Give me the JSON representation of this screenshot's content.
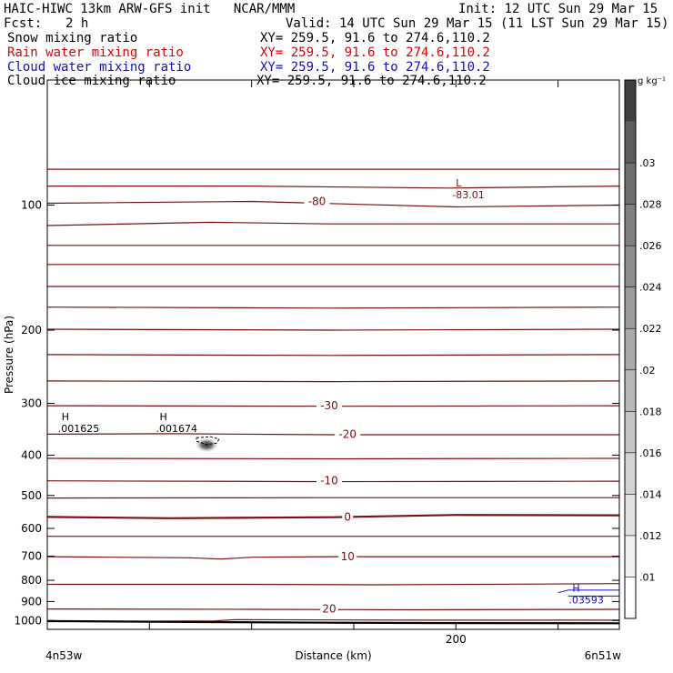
{
  "header": {
    "title": "HAIC-HIWC 13km ARW-GFS init   NCAR/MMM",
    "init": "Init: 12 UTC Sun 29 Mar 15",
    "fcst_label": "Fcst:",
    "fcst_value": "2 h",
    "valid": "Valid: 14 UTC Sun 29 Mar 15 (11 LST Sun 29 Mar 15)",
    "fields": [
      {
        "name": "Snow mixing ratio",
        "xy": "XY= 259.5, 91.6 to 274.6,110.2",
        "color": "#000000"
      },
      {
        "name": "Rain water mixing ratio",
        "xy": "XY= 259.5, 91.6 to 274.6,110.2",
        "color": "#e00000"
      },
      {
        "name": "Cloud water mixing ratio",
        "xy": "XY= 259.5, 91.6 to 274.6,110.2",
        "color": "#1010c0"
      },
      {
        "name": "Cloud ice mixing ratio",
        "xy": "XY= 259.5, 91.6 to 274.6,110.2",
        "color": "#000000"
      }
    ]
  },
  "chart_data": {
    "type": "contour",
    "xlabel": "Distance (km)",
    "ylabel": "Pressure (hPa)",
    "x_range": [
      0,
      280
    ],
    "y_range": [
      1050,
      50
    ],
    "y_scale": "log",
    "x_ticks": [
      0,
      50,
      100,
      150,
      200,
      250
    ],
    "x_tick_labels": [
      "",
      "",
      "",
      "",
      "200",
      ""
    ],
    "y_ticks": [
      100,
      200,
      300,
      400,
      500,
      600,
      700,
      800,
      900,
      1000
    ],
    "y_tick_labels": [
      "100",
      "200",
      "300",
      "400",
      "500",
      "600",
      "700",
      "800",
      "900",
      "1000"
    ],
    "left_endpoint_label": "4n53w",
    "right_endpoint_label": "6n51w",
    "temperature_color": "#7a1010",
    "temperature_contours": [
      {
        "label": "-80",
        "pts": [
          [
            0,
            82
          ],
          [
            140,
            82
          ],
          [
            280,
            82
          ]
        ]
      },
      {
        "label": "-80",
        "pts": [
          [
            0,
            90
          ],
          [
            100,
            90
          ],
          [
            196,
            91
          ],
          [
            280,
            90
          ]
        ]
      },
      {
        "label": "-80",
        "pts": [
          [
            0,
            99
          ],
          [
            100,
            98
          ],
          [
            200,
            101
          ],
          [
            280,
            100
          ]
        ]
      },
      {
        "label": "-80",
        "pts": [
          [
            0,
            112
          ],
          [
            80,
            110
          ],
          [
            138,
            111
          ],
          [
            200,
            111
          ],
          [
            280,
            111
          ]
        ]
      },
      {
        "label": "-80",
        "pts": [
          [
            0,
            125
          ],
          [
            140,
            125
          ],
          [
            280,
            125
          ]
        ]
      },
      {
        "label": "-80",
        "pts": [
          [
            0,
            139
          ],
          [
            140,
            139
          ],
          [
            280,
            139
          ]
        ]
      },
      {
        "label": "-80",
        "pts": [
          [
            0,
            157
          ],
          [
            140,
            157
          ],
          [
            280,
            157
          ]
        ]
      },
      {
        "label": "-80",
        "pts": [
          [
            0,
            176
          ],
          [
            140,
            177
          ],
          [
            280,
            176
          ]
        ]
      },
      {
        "label": "-80",
        "pts": [
          [
            0,
            199
          ],
          [
            140,
            200
          ],
          [
            280,
            199
          ]
        ]
      },
      {
        "label": "-80",
        "pts": [
          [
            0,
            229
          ],
          [
            140,
            230
          ],
          [
            280,
            229
          ]
        ]
      },
      {
        "label": "-80",
        "pts": [
          [
            0,
            265
          ],
          [
            140,
            266
          ],
          [
            280,
            265
          ]
        ]
      },
      {
        "label": "-30",
        "pts": [
          [
            0,
            304
          ],
          [
            140,
            305
          ],
          [
            280,
            304
          ]
        ]
      },
      {
        "label": "-20",
        "pts": [
          [
            0,
            356
          ],
          [
            60,
            355
          ],
          [
            140,
            357
          ],
          [
            280,
            357
          ]
        ]
      },
      {
        "label": "-20",
        "pts": [
          [
            0,
            407
          ],
          [
            140,
            408
          ],
          [
            280,
            407
          ]
        ]
      },
      {
        "label": "-10",
        "pts": [
          [
            0,
            461
          ],
          [
            140,
            463
          ],
          [
            280,
            462
          ]
        ]
      },
      {
        "label": "-10",
        "pts": [
          [
            0,
            507
          ],
          [
            140,
            506
          ],
          [
            280,
            506
          ]
        ]
      },
      {
        "label": "0",
        "pts": [
          [
            0,
            563
          ],
          [
            60,
            567
          ],
          [
            140,
            564
          ],
          [
            200,
            557
          ],
          [
            280,
            558
          ]
        ]
      },
      {
        "label": "0",
        "pts": [
          [
            0,
            627
          ],
          [
            140,
            627
          ],
          [
            280,
            627
          ]
        ]
      },
      {
        "label": "10",
        "pts": [
          [
            0,
            702
          ],
          [
            70,
            706
          ],
          [
            85,
            711
          ],
          [
            100,
            704
          ],
          [
            140,
            702
          ],
          [
            280,
            702
          ]
        ]
      },
      {
        "label": "10",
        "pts": [
          [
            0,
            818
          ],
          [
            100,
            818
          ],
          [
            160,
            820
          ],
          [
            240,
            817
          ],
          [
            280,
            815
          ]
        ]
      },
      {
        "label": "20",
        "pts": [
          [
            0,
            938
          ],
          [
            100,
            940
          ],
          [
            180,
            942
          ],
          [
            280,
            940
          ]
        ]
      },
      {
        "label": "20",
        "pts": [
          [
            0,
            1006
          ],
          [
            40,
            1004
          ],
          [
            82,
            1002
          ],
          [
            92,
            995
          ],
          [
            180,
            998
          ],
          [
            280,
            998
          ]
        ]
      }
    ],
    "terrain_line": [
      [
        0,
        1003
      ],
      [
        70,
        1008
      ],
      [
        140,
        1012
      ],
      [
        200,
        1014
      ],
      [
        280,
        1015
      ]
    ],
    "contour_labels": [
      {
        "text": "-80",
        "x": 132,
        "p": 98
      },
      {
        "text": "-30",
        "x": 138,
        "p": 304
      },
      {
        "text": "-20",
        "x": 147,
        "p": 356
      },
      {
        "text": "-10",
        "x": 138,
        "p": 461
      },
      {
        "text": "0",
        "x": 147,
        "p": 563
      },
      {
        "text": "10",
        "x": 147,
        "p": 702
      },
      {
        "text": "20",
        "x": 138,
        "p": 938
      }
    ],
    "extrema": [
      {
        "type": "L",
        "value": "-83.01",
        "x": 200,
        "p": 91,
        "color": "#7a1010"
      },
      {
        "type": "H",
        "value": ".001625",
        "x": 7,
        "p": 333,
        "color": "#000000"
      },
      {
        "type": "H",
        "value": ".001674",
        "x": 55,
        "p": 333,
        "color": "#000000"
      },
      {
        "type": "H",
        "value": ".03593",
        "x": 257,
        "p": 860,
        "color": "#1010c0"
      }
    ],
    "snow_blob": {
      "x": 78,
      "p": 378,
      "x_width": 12,
      "p_height": 30
    },
    "cloud_ice_contour": [
      [
        73,
        363
      ],
      [
        80,
        361
      ],
      [
        84,
        366
      ],
      [
        83,
        374
      ],
      [
        78,
        377
      ],
      [
        73,
        370
      ],
      [
        73,
        363
      ]
    ],
    "cloud_water_contour": [
      [
        250,
        857
      ],
      [
        255,
        845
      ],
      [
        285,
        845
      ],
      [
        290,
        858
      ],
      [
        285,
        873
      ],
      [
        255,
        873
      ]
    ],
    "colorbar": {
      "unit": "g kg⁻¹",
      "ticks": [
        ".01",
        ".012",
        ".014",
        ".016",
        ".018",
        ".02",
        ".022",
        ".024",
        ".026",
        ".028",
        ".03"
      ],
      "colors": [
        "#ffffff",
        "#f0f0f0",
        "#e2e2e2",
        "#d4d4d4",
        "#c6c6c6",
        "#b8b8b8",
        "#aaaaaa",
        "#9c9c9c",
        "#8e8e8e",
        "#808080",
        "#707070",
        "#5e5e5e",
        "#404040"
      ]
    }
  }
}
